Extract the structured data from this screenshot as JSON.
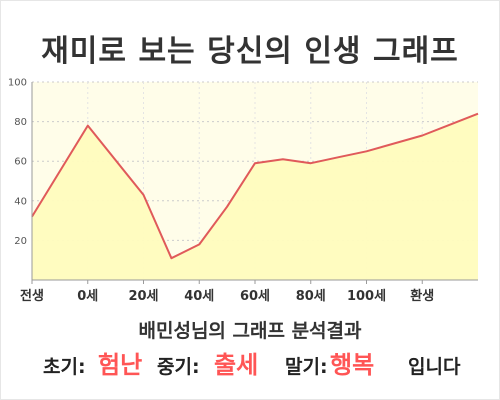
{
  "title": "재미로 보는 당신의 인생 그래프",
  "chart_data": {
    "type": "area",
    "x_tick_labels": [
      "전생",
      "0세",
      "20세",
      "40세",
      "60세",
      "80세",
      "100세",
      "환생"
    ],
    "y_tick_labels": [
      "20",
      "40",
      "60",
      "80",
      "100"
    ],
    "ylim": [
      0,
      100
    ],
    "grid": true,
    "series": [
      {
        "x": [
          -10,
          0,
          10,
          15,
          20,
          25,
          30,
          35,
          40,
          45,
          50,
          60,
          70
        ],
        "y": [
          32,
          78,
          43,
          11,
          18,
          37,
          59,
          61,
          59,
          62,
          65,
          73,
          84
        ]
      }
    ]
  },
  "colors": {
    "line": "#e05a5a",
    "fill": "#fffcbe",
    "plot_bg": "#fffde9",
    "grid": "#cccccc",
    "accent": "#ff5555"
  },
  "result": {
    "subtitle": "배민성님의 그래프 분석결과",
    "early_label": "초기:",
    "early_value": "험난",
    "mid_label": "중기:",
    "mid_value": "출세",
    "late_label": "말기:",
    "late_value": "행복",
    "ending": "입니다"
  }
}
